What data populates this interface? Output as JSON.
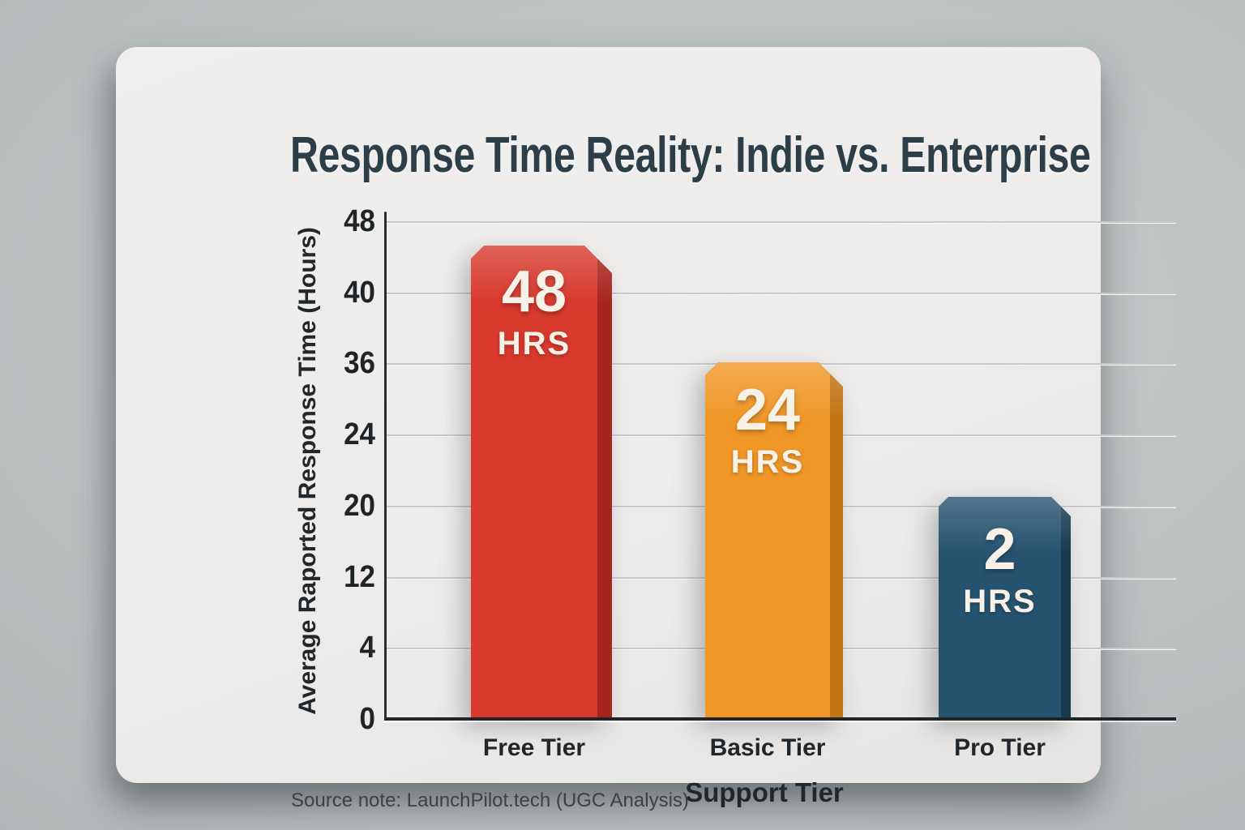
{
  "card": {
    "title": "Response Time Reality: Indie vs. Enterprise",
    "source_note": "Source note: LaunchPilot.tech (UGC Analysis)"
  },
  "chart_data": {
    "type": "bar",
    "title": "Response Time Reality: Indie vs. Enterprise",
    "xlabel": "Support Tier",
    "ylabel": "Average Raported Response Time (Hours)",
    "source_note": "Source note: LaunchPilot.tech (UGC Analysis)",
    "categories": [
      "Free Tier",
      "Basic Tier",
      "Pro Tier"
    ],
    "values": [
      48,
      24,
      2
    ],
    "unit_label": "HRS",
    "ytick_labels_top_to_bottom": [
      "48",
      "40",
      "36",
      "24",
      "20",
      "12",
      "4",
      "0"
    ],
    "grid": true,
    "legend": false,
    "bars": [
      {
        "category": "Free Tier",
        "value_label": "48",
        "unit": "HRS",
        "face_color": "#d83a2e",
        "side_color": "#a8251f"
      },
      {
        "category": "Basic Tier",
        "value_label": "24",
        "unit": "HRS",
        "face_color": "#f09727",
        "side_color": "#c07414"
      },
      {
        "category": "Pro Tier",
        "value_label": "2",
        "unit": "HRS",
        "face_color": "#26536f",
        "side_color": "#163a50"
      }
    ],
    "colors": {
      "background": "#b7bcbd",
      "card": "#edecea",
      "gridline": "#c5c9c8",
      "axis": "#23272a",
      "title_text": "#2c3e47",
      "bar_text": "#f8f1e7"
    }
  }
}
